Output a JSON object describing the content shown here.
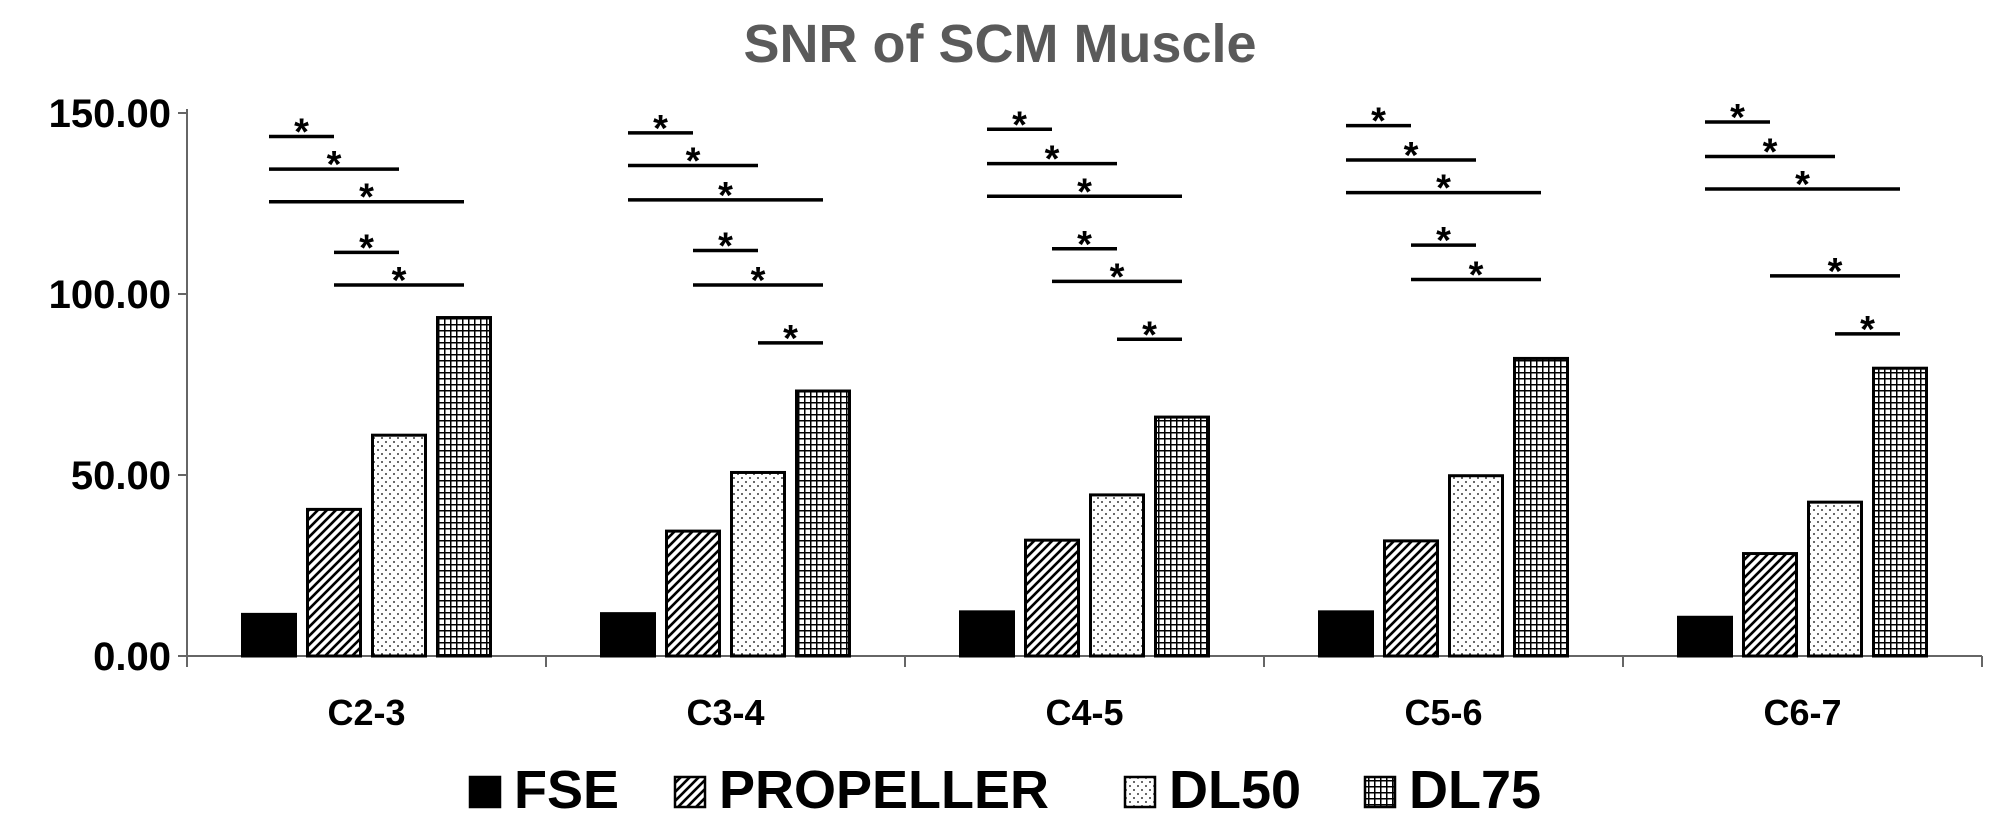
{
  "chart_data": {
    "type": "bar",
    "title": "SNR of SCM Muscle",
    "xlabel": "",
    "ylabel": "",
    "ylim": [
      0,
      150
    ],
    "yticks": [
      "0.00",
      "50.00",
      "100.00",
      "150.00"
    ],
    "categories": [
      "C2-3",
      "C3-4",
      "C4-5",
      "C5-6",
      "C6-7"
    ],
    "series": [
      {
        "name": "FSE",
        "pattern": "solid",
        "values": [
          11.5,
          11.7,
          12.2,
          12.2,
          10.7
        ]
      },
      {
        "name": "PROPELLER",
        "pattern": "diagonal",
        "values": [
          40.5,
          34.5,
          32.0,
          31.8,
          28.3
        ]
      },
      {
        "name": "DL50",
        "pattern": "dots",
        "values": [
          61.0,
          50.7,
          44.5,
          49.8,
          42.5
        ]
      },
      {
        "name": "DL75",
        "pattern": "grid",
        "values": [
          93.5,
          73.2,
          66.0,
          82.2,
          79.5
        ]
      }
    ],
    "legend_position": "bottom",
    "grid": false,
    "significance": [
      [
        {
          "from": 0,
          "to": 1,
          "y": 143.5,
          "label": "*"
        },
        {
          "from": 0,
          "to": 2,
          "y": 134.5,
          "label": "*"
        },
        {
          "from": 0,
          "to": 3,
          "y": 125.5,
          "label": "*"
        },
        {
          "from": 1,
          "to": 2,
          "y": 111.5,
          "label": "*"
        },
        {
          "from": 1,
          "to": 3,
          "y": 102.5,
          "label": "*"
        }
      ],
      [
        {
          "from": 0,
          "to": 1,
          "y": 144.5,
          "label": "*"
        },
        {
          "from": 0,
          "to": 2,
          "y": 135.5,
          "label": "*"
        },
        {
          "from": 0,
          "to": 3,
          "y": 126.0,
          "label": "*"
        },
        {
          "from": 1,
          "to": 2,
          "y": 112.0,
          "label": "*"
        },
        {
          "from": 1,
          "to": 3,
          "y": 102.5,
          "label": "*"
        },
        {
          "from": 2,
          "to": 3,
          "y": 86.5,
          "label": "*"
        }
      ],
      [
        {
          "from": 0,
          "to": 1,
          "y": 145.5,
          "label": "*"
        },
        {
          "from": 0,
          "to": 2,
          "y": 136.0,
          "label": "*"
        },
        {
          "from": 0,
          "to": 3,
          "y": 127.0,
          "label": "*"
        },
        {
          "from": 1,
          "to": 2,
          "y": 112.5,
          "label": "*"
        },
        {
          "from": 1,
          "to": 3,
          "y": 103.5,
          "label": "*"
        },
        {
          "from": 2,
          "to": 3,
          "y": 87.5,
          "label": "*"
        }
      ],
      [
        {
          "from": 0,
          "to": 1,
          "y": 146.5,
          "label": "*"
        },
        {
          "from": 0,
          "to": 2,
          "y": 137.0,
          "label": "*"
        },
        {
          "from": 0,
          "to": 3,
          "y": 128.0,
          "label": "*"
        },
        {
          "from": 1,
          "to": 2,
          "y": 113.5,
          "label": "*"
        },
        {
          "from": 1,
          "to": 3,
          "y": 104.0,
          "label": "*"
        }
      ],
      [
        {
          "from": 0,
          "to": 1,
          "y": 147.5,
          "label": "*"
        },
        {
          "from": 0,
          "to": 2,
          "y": 138.0,
          "label": "*"
        },
        {
          "from": 0,
          "to": 3,
          "y": 129.0,
          "label": "*"
        },
        {
          "from": 1,
          "to": 3,
          "y": 105.0,
          "label": "*"
        },
        {
          "from": 2,
          "to": 3,
          "y": 89.0,
          "label": "*"
        }
      ]
    ]
  }
}
